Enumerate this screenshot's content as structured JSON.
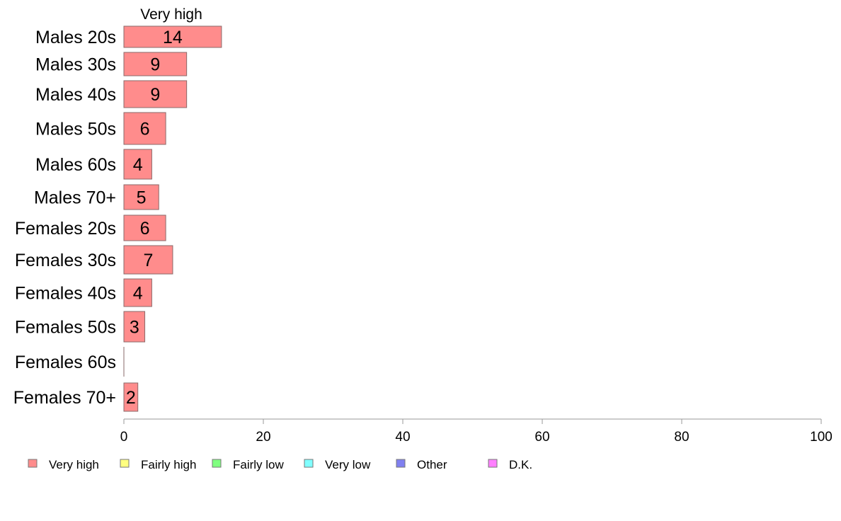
{
  "chart_data": {
    "type": "bar",
    "orientation": "horizontal",
    "column_header": "Very high",
    "categories": [
      "Males 20s",
      "Males 30s",
      "Males 40s",
      "Males 50s",
      "Males 60s",
      "Males 70+",
      "Females 20s",
      "Females 30s",
      "Females 40s",
      "Females 50s",
      "Females 60s",
      "Females 70+"
    ],
    "series": [
      {
        "name": "Very high",
        "color": "#ff8c8c",
        "values": [
          14,
          9,
          9,
          6,
          4,
          5,
          6,
          7,
          4,
          3,
          0,
          2
        ]
      }
    ],
    "xlim": [
      0,
      100
    ],
    "xticks": [
      0,
      20,
      40,
      60,
      80,
      100
    ],
    "grid": false,
    "legend_position": "bottom",
    "legend": [
      {
        "label": "Very high",
        "color": "#ff8c8c"
      },
      {
        "label": "Fairly high",
        "color": "#ffff80"
      },
      {
        "label": "Fairly low",
        "color": "#80ff80"
      },
      {
        "label": "Very low",
        "color": "#80ffff"
      },
      {
        "label": "Other",
        "color": "#8080f0"
      },
      {
        "label": "D.K.",
        "color": "#ff80ff"
      }
    ]
  }
}
